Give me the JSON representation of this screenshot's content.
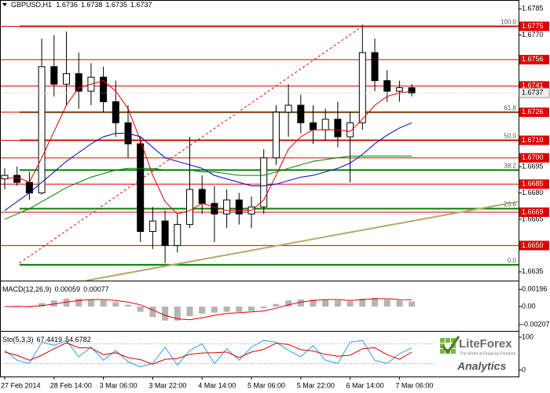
{
  "chart_data": [
    {
      "type": "candlestick",
      "title": "GBPUSD,H1",
      "header_ohlc": [
        1.6736,
        1.6738,
        1.6735,
        1.6737
      ],
      "categories": [
        "27 Feb 2014",
        null,
        null,
        null,
        "28 Feb 14:00",
        null,
        null,
        null,
        "3 Mar 06:00",
        null,
        null,
        null,
        "3 Mar 22:00",
        null,
        null,
        null,
        "4 Mar 14:00",
        null,
        null,
        null,
        "5 Mar 06:00",
        null,
        null,
        null,
        "5 Mar 22:00",
        null,
        null,
        null,
        "6 Mar 14:00",
        null,
        null,
        null,
        "7 Mar 06:00",
        null
      ],
      "open": [
        1.6688,
        1.669,
        1.6686,
        1.668,
        1.6752,
        1.6742,
        1.6748,
        1.6738,
        1.6746,
        1.6732,
        1.672,
        1.6708,
        1.6658,
        1.6664,
        1.665,
        1.6662,
        1.6682,
        1.6674,
        1.6668,
        1.6676,
        1.6668,
        1.6672,
        1.67,
        1.6726,
        1.673,
        1.672,
        1.6716,
        1.6722,
        1.6712,
        1.672,
        1.676,
        1.6744,
        1.6738,
        1.674
      ],
      "high": [
        1.6694,
        1.6695,
        1.6692,
        1.6768,
        1.677,
        1.6772,
        1.676,
        1.6754,
        1.6752,
        1.6744,
        1.673,
        1.6712,
        1.6672,
        1.667,
        1.6668,
        1.6712,
        1.669,
        1.6684,
        1.6682,
        1.668,
        1.6678,
        1.6705,
        1.673,
        1.6742,
        1.6736,
        1.673,
        1.6728,
        1.6732,
        1.6726,
        1.6776,
        1.6768,
        1.675,
        1.6744,
        1.6742
      ],
      "low": [
        1.6682,
        1.6684,
        1.6676,
        1.6679,
        1.6735,
        1.673,
        1.6728,
        1.673,
        1.6726,
        1.6712,
        1.67,
        1.6652,
        1.6648,
        1.664,
        1.6646,
        1.666,
        1.6668,
        1.6652,
        1.666,
        1.6662,
        1.666,
        1.6668,
        1.6696,
        1.6712,
        1.6714,
        1.6708,
        1.671,
        1.6706,
        1.6686,
        1.6716,
        1.6738,
        1.6732,
        1.6732,
        1.6735
      ],
      "close": [
        1.669,
        1.6686,
        1.668,
        1.6752,
        1.6742,
        1.6748,
        1.6738,
        1.6746,
        1.6732,
        1.672,
        1.6708,
        1.6658,
        1.6664,
        1.665,
        1.6662,
        1.6682,
        1.6674,
        1.6668,
        1.6676,
        1.6668,
        1.6672,
        1.67,
        1.6726,
        1.673,
        1.672,
        1.6716,
        1.6722,
        1.6712,
        1.672,
        1.676,
        1.6744,
        1.6738,
        1.674,
        1.6737
      ],
      "up_color": "#ffffff",
      "down_color": "#000000",
      "series": [
        {
          "color": "#e00000",
          "values": [
            1.6688,
            1.6689,
            1.6686,
            1.67,
            1.6715,
            1.673,
            1.674,
            1.6742,
            1.6744,
            1.6738,
            1.6728,
            1.671,
            1.669,
            1.6675,
            1.6668,
            1.667,
            1.6674,
            1.6672,
            1.667,
            1.667,
            1.667,
            1.6676,
            1.669,
            1.6705,
            1.6712,
            1.6716,
            1.6716,
            1.6716,
            1.6715,
            1.6722,
            1.673,
            1.6735,
            1.6737,
            1.6738
          ]
        },
        {
          "color": "#0000cc",
          "values": [
            1.667,
            1.6675,
            1.668,
            1.6686,
            1.6692,
            1.6698,
            1.6703,
            1.6708,
            1.6712,
            1.6714,
            1.6714,
            1.6712,
            1.6706,
            1.67,
            1.6698,
            1.6696,
            1.6694,
            1.669,
            1.6688,
            1.6686,
            1.6684,
            1.6684,
            1.6685,
            1.6687,
            1.6689,
            1.669,
            1.6692,
            1.6694,
            1.6697,
            1.6702,
            1.6708,
            1.6713,
            1.6717,
            1.672
          ]
        },
        {
          "color": "#008000",
          "values": [
            1.6665,
            1.6668,
            1.6671,
            1.6675,
            1.6679,
            1.6683,
            1.6686,
            1.6689,
            1.6691,
            1.6693,
            1.6694,
            1.6694,
            1.6694,
            1.6693,
            1.6693,
            1.6693,
            1.6692,
            1.6692,
            1.6691,
            1.669,
            1.669,
            1.669,
            1.6692,
            1.6694,
            1.6696,
            1.6698,
            1.6699,
            1.67,
            1.6701,
            1.6701,
            1.6701,
            1.6701,
            1.6701,
            1.6701
          ]
        }
      ],
      "ylim": [
        1.663,
        1.679
      ],
      "yticks": [
        1.6785,
        {
          "value": 1.677,
          "label": "1.6770"
        },
        1.6695,
        {
          "value": 1.668,
          "label": "1.6680"
        },
        1.6665,
        1.6635
      ],
      "levels": [
        1.6775,
        1.6756,
        1.6741,
        1.6726,
        {
          "value": 1.671,
          "label": "1.6710"
        },
        {
          "value": 1.67,
          "label": "1.6700"
        },
        1.6685,
        1.6669,
        {
          "value": 1.665,
          "label": "1.6650"
        }
      ],
      "level_color": "#e00000",
      "last_price": 1.6737,
      "fib_levels": [
        {
          "label": "100.0",
          "value": 1.6775
        },
        {
          "label": "61.8",
          "value": 1.6726
        },
        {
          "label": "50.0",
          "value": 1.671
        },
        {
          "label": "38.2",
          "value": 1.6693
        },
        {
          "label": "23.6",
          "value": 1.6671
        },
        {
          "label": "0.0",
          "value": 1.6639
        }
      ],
      "fib_color": "#008000",
      "trendlines": [
        {
          "x": [
            1.2,
            29
          ],
          "y": [
            1.664,
            1.6775
          ],
          "color": "#e00000",
          "dashed": true
        },
        {
          "x": [
            6.6,
            41.6
          ],
          "y": [
            1.663,
            1.6675
          ],
          "color": "#b5a96b",
          "dashed": false
        }
      ]
    },
    {
      "type": "macd",
      "title": "MACD(12,26,9)",
      "current": [
        0.00059,
        0.00077
      ],
      "values": [
        0.0,
        0.0001,
        -0.0001,
        0.0004,
        0.0007,
        0.0009,
        0.0009,
        0.0008,
        0.0007,
        0.0005,
        0.0002,
        -0.0006,
        -0.0012,
        -0.0016,
        -0.0016,
        -0.0011,
        -0.0008,
        -0.0007,
        -0.0006,
        -0.0006,
        -0.0005,
        -0.0002,
        0.0003,
        0.0007,
        0.0008,
        0.0008,
        0.0008,
        0.0007,
        0.0006,
        0.0009,
        0.001,
        0.0008,
        0.0007,
        0.00059
      ],
      "color": "#b4b4b4",
      "series": [
        {
          "color": "#e00000",
          "values": [
            0.0,
            0.0,
            0.0,
            0.0001,
            0.0003,
            0.0005,
            0.0007,
            0.0008,
            0.0008,
            0.0007,
            0.0005,
            0.0002,
            -0.0004,
            -0.001,
            -0.0014,
            -0.0015,
            -0.0013,
            -0.001,
            -0.0008,
            -0.0007,
            -0.0006,
            -0.0005,
            -0.0002,
            0.0002,
            0.0005,
            0.0007,
            0.0008,
            0.0008,
            0.0007,
            0.0008,
            0.0009,
            0.0009,
            0.0008,
            0.00077
          ]
        }
      ],
      "ylim": [
        -0.0027,
        0.0027
      ],
      "yticks": [
        0.00196,
        {
          "value": 0,
          "label": "0.00"
        },
        -0.00207
      ]
    },
    {
      "type": "line",
      "title": "Sto(5,3,3)",
      "current": [
        67.4419,
        54.6782
      ],
      "series": [
        {
          "color": "#2a9df4",
          "values": [
            60,
            30,
            20,
            85,
            75,
            90,
            40,
            70,
            30,
            60,
            25,
            10,
            20,
            70,
            15,
            60,
            80,
            20,
            65,
            30,
            70,
            90,
            85,
            60,
            40,
            75,
            30,
            20,
            85,
            90,
            30,
            20,
            50,
            67.4419
          ]
        },
        {
          "color": "#e00000",
          "values": [
            55,
            45,
            30,
            45,
            65,
            83,
            68,
            67,
            47,
            53,
            38,
            32,
            18,
            33,
            35,
            48,
            52,
            53,
            55,
            38,
            55,
            63,
            82,
            78,
            62,
            58,
            48,
            42,
            45,
            65,
            68,
            47,
            33,
            54.6782
          ]
        }
      ],
      "ylim": [
        -17,
        112
      ],
      "yticks": [
        100,
        0
      ],
      "levels": [
        20,
        80
      ]
    }
  ],
  "watermark": {
    "name": "LiteForex",
    "tagline": "The World of Financial Freedom",
    "product": "Analytics"
  }
}
